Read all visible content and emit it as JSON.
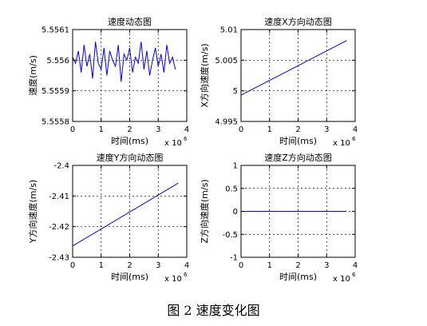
{
  "caption": "图 2  速度变化图",
  "colors": {
    "line": "#0000ff",
    "axis": "#000000",
    "grid": "#000000"
  },
  "chart_data": [
    {
      "type": "line",
      "title": "速度动态图",
      "xlabel": "时间(ms)",
      "ylabel": "速度(m/s)",
      "xlim": [
        0,
        4000000
      ],
      "ylim": [
        5.5558,
        5.5561
      ],
      "xticks": [
        0,
        1,
        2,
        3,
        4
      ],
      "xtick_labels": [
        "0",
        "1",
        "2",
        "3",
        "4"
      ],
      "x_multiplier": "x 10",
      "x_multiplier_exp": "6",
      "yticks": [
        5.5558,
        5.5559,
        5.556,
        5.5561
      ],
      "ytick_labels": [
        "5.5558",
        "5.5559",
        "5.556",
        "5.5561"
      ],
      "grid": true,
      "series": [
        {
          "x": [
            0,
            100000,
            200000,
            300000,
            400000,
            500000,
            600000,
            700000,
            800000,
            900000,
            1000000,
            1100000,
            1200000,
            1300000,
            1400000,
            1500000,
            1600000,
            1700000,
            1800000,
            1900000,
            2000000,
            2100000,
            2200000,
            2300000,
            2400000,
            2500000,
            2600000,
            2700000,
            2800000,
            2900000,
            3000000,
            3100000,
            3200000,
            3300000,
            3400000,
            3500000,
            3600000
          ],
          "values": [
            5.55601,
            5.55599,
            5.55603,
            5.55596,
            5.55605,
            5.55598,
            5.55602,
            5.55594,
            5.55606,
            5.55599,
            5.55597,
            5.55604,
            5.55595,
            5.55603,
            5.556,
            5.55598,
            5.55605,
            5.55593,
            5.55602,
            5.556,
            5.55604,
            5.55596,
            5.55601,
            5.55599,
            5.55606,
            5.55597,
            5.55603,
            5.55595,
            5.556,
            5.55604,
            5.55598,
            5.55602,
            5.55596,
            5.55605,
            5.55599,
            5.55601,
            5.55597
          ]
        }
      ]
    },
    {
      "type": "line",
      "title": "速度X方向动态图",
      "xlabel": "时间(ms)",
      "ylabel": "X方向速度(m/s)",
      "xlim": [
        0,
        4000000
      ],
      "ylim": [
        4.995,
        5.01
      ],
      "xticks": [
        0,
        1,
        2,
        3,
        4
      ],
      "xtick_labels": [
        "0",
        "1",
        "2",
        "3",
        "4"
      ],
      "x_multiplier": "x 10",
      "x_multiplier_exp": "6",
      "yticks": [
        4.995,
        5,
        5.005,
        5.01
      ],
      "ytick_labels": [
        "4.995",
        "5",
        "5.005",
        "5.01"
      ],
      "grid": true,
      "series": [
        {
          "x": [
            0,
            3700000
          ],
          "values": [
            4.9993,
            5.0082
          ]
        }
      ]
    },
    {
      "type": "line",
      "title": "速度Y方向动态图",
      "xlabel": "时间(ms)",
      "ylabel": "Y方向速度(m/s)",
      "xlim": [
        0,
        4000000
      ],
      "ylim": [
        -2.43,
        -2.4
      ],
      "xticks": [
        0,
        1,
        2,
        3,
        4
      ],
      "xtick_labels": [
        "0",
        "1",
        "2",
        "3",
        "4"
      ],
      "x_multiplier": "x 10",
      "x_multiplier_exp": "6",
      "yticks": [
        -2.43,
        -2.42,
        -2.41,
        -2.4
      ],
      "ytick_labels": [
        "-2.43",
        "-2.42",
        "-2.41",
        "-2.4"
      ],
      "grid": true,
      "series": [
        {
          "x": [
            0,
            3700000
          ],
          "values": [
            -2.4263,
            -2.4058
          ]
        }
      ]
    },
    {
      "type": "line",
      "title": "速度Z方向动态图",
      "xlabel": "时间(ms)",
      "ylabel": "Z方向速度(m/s)",
      "xlim": [
        0,
        4000000
      ],
      "ylim": [
        -1,
        1
      ],
      "xticks": [
        0,
        1,
        2,
        3,
        4
      ],
      "xtick_labels": [
        "0",
        "1",
        "2",
        "3",
        "4"
      ],
      "x_multiplier": "x 10",
      "x_multiplier_exp": "6",
      "yticks": [
        -1,
        -0.5,
        0,
        0.5,
        1
      ],
      "ytick_labels": [
        "-1",
        "-0.5",
        "0",
        "0.5",
        "1"
      ],
      "grid": true,
      "series": [
        {
          "x": [
            0,
            3700000
          ],
          "values": [
            0,
            0
          ]
        }
      ]
    }
  ]
}
